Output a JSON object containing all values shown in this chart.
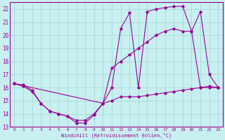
{
  "title": "",
  "xlabel": "Windchill (Refroidissement éolien,°C)",
  "ylabel": "",
  "background_color": "#c8f0f0",
  "grid_color": "#aad8d8",
  "line_color": "#990099",
  "xlim": [
    -0.5,
    23.5
  ],
  "ylim": [
    13,
    22.5
  ],
  "yticks": [
    13,
    14,
    15,
    16,
    17,
    18,
    19,
    20,
    21,
    22
  ],
  "xticks": [
    0,
    1,
    2,
    3,
    4,
    5,
    6,
    7,
    8,
    9,
    10,
    11,
    12,
    13,
    14,
    15,
    16,
    17,
    18,
    19,
    20,
    21,
    22,
    23
  ],
  "series": [
    {
      "x": [
        0,
        1,
        2,
        3,
        4,
        5,
        6,
        7,
        8,
        9,
        10,
        11,
        12,
        13,
        14,
        15,
        16,
        17,
        18,
        19,
        20,
        21,
        22,
        23
      ],
      "y": [
        16.3,
        16.2,
        15.8,
        14.8,
        14.2,
        14.0,
        13.8,
        13.3,
        13.3,
        13.9,
        14.8,
        15.0,
        15.3,
        15.3,
        15.3,
        15.4,
        15.5,
        15.6,
        15.7,
        15.8,
        15.9,
        16.0,
        16.1,
        16.0
      ]
    },
    {
      "x": [
        0,
        1,
        2,
        3,
        4,
        5,
        6,
        7,
        8,
        9,
        10,
        11,
        12,
        13,
        14,
        15,
        16,
        17,
        18,
        19,
        20,
        21,
        22,
        23
      ],
      "y": [
        16.3,
        16.1,
        15.7,
        14.8,
        14.2,
        14.0,
        13.8,
        13.5,
        13.5,
        14.0,
        14.8,
        17.5,
        18.0,
        18.5,
        19.0,
        19.5,
        20.0,
        20.3,
        20.5,
        20.3,
        20.3,
        16.0,
        16.0,
        16.0
      ]
    },
    {
      "x": [
        0,
        10,
        11,
        12,
        13,
        14,
        15,
        16,
        17,
        18,
        19,
        20,
        21,
        22,
        23
      ],
      "y": [
        16.3,
        14.8,
        16.0,
        20.5,
        21.7,
        16.0,
        21.8,
        22.0,
        22.1,
        22.2,
        22.2,
        20.3,
        21.8,
        17.0,
        16.0
      ]
    }
  ]
}
